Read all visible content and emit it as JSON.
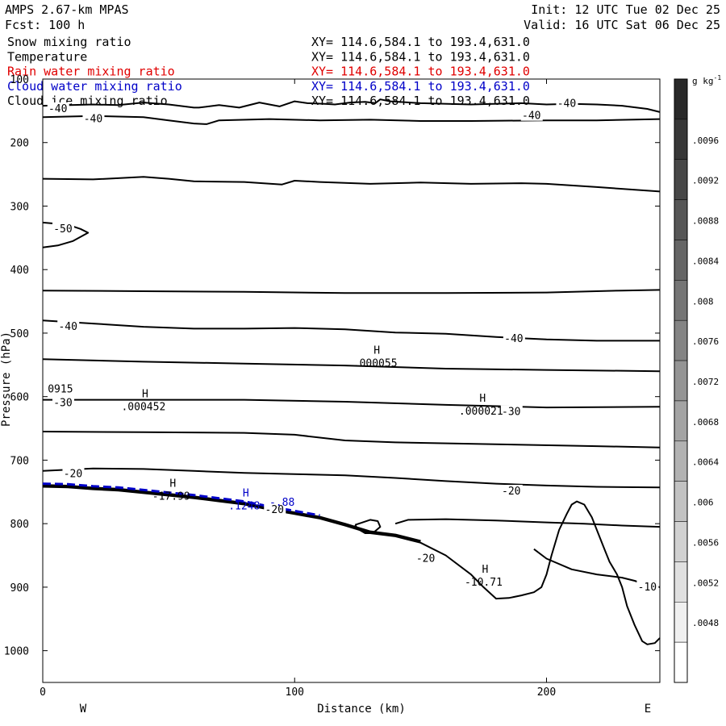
{
  "header": {
    "title": "AMPS 2.67-km MPAS",
    "fcst": "Fcst:  100 h",
    "init": "Init: 12 UTC Tue 02 Dec 25",
    "valid": "Valid: 16 UTC Sat 06 Dec 25"
  },
  "fields": [
    {
      "name": "Snow mixing ratio",
      "xy": "XY= 114.6,584.1 to 193.4,631.0",
      "color": "#000000"
    },
    {
      "name": "Temperature",
      "xy": "XY= 114.6,584.1 to 193.4,631.0",
      "color": "#000000"
    },
    {
      "name": "Rain water mixing ratio",
      "xy": "XY= 114.6,584.1 to 193.4,631.0",
      "color": "#e00000"
    },
    {
      "name": "Cloud water mixing ratio",
      "xy": "XY= 114.6,584.1 to 193.4,631.0",
      "color": "#0000c8"
    },
    {
      "name": "Cloud ice mixing ratio",
      "xy": "XY= 114.6,584.1 to 193.4,631.0",
      "color": "#000000"
    }
  ],
  "chart_data": {
    "type": "contour-cross-section",
    "xlabel": "Distance (km)",
    "ylabel": "Pressure (hPa)",
    "xlim": [
      0,
      245
    ],
    "ylim": [
      1050,
      100
    ],
    "x_ticks": [
      0,
      100,
      200
    ],
    "x_tick_labels": [
      "0",
      "100",
      "200"
    ],
    "y_ticks": [
      100,
      200,
      300,
      400,
      500,
      600,
      700,
      800,
      900,
      1000
    ],
    "y_tick_labels": [
      "100",
      "200",
      "300",
      "400",
      "500",
      "600",
      "700",
      "800",
      "900",
      "1000"
    ],
    "west_label": "W",
    "east_label": "E",
    "colorbar": {
      "unit_label": "g kg",
      "unit_exp": "-1",
      "tick_labels": [
        ".0096",
        ".0092",
        ".0088",
        ".0084",
        ".008",
        ".0076",
        ".0072",
        ".0068",
        ".0064",
        ".006",
        ".0056",
        ".0052",
        ".0048"
      ]
    },
    "contour_labels": [
      {
        "text": "-40",
        "x": 6,
        "p": 147
      },
      {
        "text": "-40",
        "x": 20,
        "p": 163
      },
      {
        "text": "-40",
        "x": 208,
        "p": 139
      },
      {
        "text": "-40",
        "x": 194,
        "p": 158
      },
      {
        "text": "-50",
        "x": 8,
        "p": 336
      },
      {
        "text": "-40",
        "x": 10,
        "p": 490
      },
      {
        "text": "-40",
        "x": 187,
        "p": 509
      },
      {
        "text": "-30",
        "x": 8,
        "p": 610
      },
      {
        "text": "-30",
        "x": 186,
        "p": 624
      },
      {
        "text": "-20",
        "x": 12,
        "p": 722
      },
      {
        "text": "-20",
        "x": 186,
        "p": 749
      },
      {
        "text": "-20",
        "x": 152,
        "p": 855
      },
      {
        "text": "-10",
        "x": 240,
        "p": 900
      },
      {
        "text": "-20",
        "x": 92,
        "p": 778
      }
    ],
    "extrema": [
      {
        "mark": "H",
        "value": ".000055",
        "x": 132,
        "p": 550,
        "color": "#000000"
      },
      {
        "mark": "H",
        "value": ".000452",
        "x": 40,
        "p": 619,
        "color": "#000000"
      },
      {
        "mark": "H",
        "value": ".000021",
        "x": 174,
        "p": 626,
        "color": "#000000"
      },
      {
        "mark": "H",
        "value": "-17.99",
        "x": 51,
        "p": 760,
        "color": "#000000"
      },
      {
        "mark": "H",
        "value": ".1248",
        "x": 80,
        "p": 775,
        "color": "#0000c8"
      },
      {
        "mark": "H",
        "value": "-10.71",
        "x": 175,
        "p": 895,
        "color": "#000000"
      }
    ],
    "edge_label": {
      "text": "0915",
      "x": 2,
      "p": 596
    },
    "isotherms": [
      {
        "name": "upper-a",
        "x": [
          0,
          20,
          30,
          40,
          50,
          60,
          62,
          70,
          78,
          86,
          94,
          100,
          105,
          112,
          116,
          122,
          128,
          132,
          134,
          138,
          150,
          170,
          190,
          200,
          210,
          220,
          230,
          240,
          245
        ],
        "p": [
          142,
          140,
          141,
          137,
          140,
          145,
          145,
          141,
          145,
          137,
          143,
          135,
          138,
          139,
          140,
          137,
          136,
          138,
          132,
          135,
          138,
          140,
          138,
          140,
          139,
          140,
          142,
          147,
          152
        ]
      },
      {
        "name": "upper-b",
        "x": [
          0,
          20,
          40,
          50,
          60,
          65,
          70,
          90,
          110,
          130,
          150,
          170,
          200,
          220,
          245
        ],
        "p": [
          160,
          158,
          160,
          165,
          170,
          171,
          165,
          163,
          165,
          164,
          166,
          166,
          165,
          165,
          163
        ]
      },
      {
        "name": "t260",
        "x": [
          0,
          20,
          40,
          50,
          60,
          80,
          95,
          100,
          110,
          130,
          150,
          170,
          190,
          200,
          220,
          245
        ],
        "p": [
          257,
          258,
          254,
          257,
          261,
          262,
          266,
          260,
          262,
          265,
          263,
          265,
          264,
          265,
          270,
          277
        ]
      },
      {
        "name": "t-50",
        "x": [
          0,
          6,
          12,
          15,
          18,
          12,
          6,
          0
        ],
        "p": [
          326,
          328,
          332,
          336,
          342,
          355,
          362,
          365
        ]
      },
      {
        "name": "t430",
        "x": [
          0,
          40,
          80,
          120,
          160,
          200,
          230,
          245
        ],
        "p": [
          433,
          434,
          435,
          437,
          437,
          436,
          433,
          432
        ]
      },
      {
        "name": "t-40",
        "x": [
          0,
          20,
          40,
          60,
          80,
          100,
          120,
          140,
          160,
          180,
          200,
          220,
          245
        ],
        "p": [
          480,
          485,
          490,
          493,
          493,
          492,
          494,
          499,
          501,
          506,
          510,
          512,
          512
        ]
      },
      {
        "name": "t545",
        "x": [
          0,
          40,
          80,
          120,
          160,
          200,
          245
        ],
        "p": [
          541,
          545,
          548,
          551,
          556,
          558,
          560
        ]
      },
      {
        "name": "t-30",
        "x": [
          0,
          40,
          80,
          120,
          160,
          200,
          245
        ],
        "p": [
          605,
          605,
          605,
          608,
          613,
          617,
          616
        ]
      },
      {
        "name": "t655",
        "x": [
          0,
          40,
          80,
          100,
          120,
          140,
          180,
          220,
          245
        ],
        "p": [
          655,
          656,
          657,
          660,
          669,
          672,
          675,
          678,
          680
        ]
      },
      {
        "name": "t-20",
        "x": [
          0,
          20,
          40,
          60,
          80,
          100,
          120,
          140,
          160,
          180,
          200,
          220,
          245
        ],
        "p": [
          717,
          713,
          714,
          717,
          720,
          722,
          724,
          728,
          733,
          737,
          740,
          742,
          743
        ]
      },
      {
        "name": "t-20-low",
        "x": [
          140,
          145,
          160,
          180,
          200,
          215,
          230,
          245
        ],
        "p": [
          800,
          794,
          793,
          795,
          798,
          800,
          803,
          805
        ]
      },
      {
        "name": "t-10",
        "x": [
          195,
          200,
          210,
          220,
          230,
          235,
          240,
          245
        ],
        "p": [
          840,
          855,
          872,
          880,
          885,
          890,
          897,
          900
        ]
      }
    ],
    "terrain": {
      "x": [
        0,
        10,
        20,
        30,
        40,
        50,
        60,
        70,
        80,
        90,
        100,
        110,
        120,
        130,
        140,
        150,
        160,
        170,
        175,
        180,
        185,
        190,
        195,
        198,
        200,
        202,
        205,
        208,
        210,
        212,
        215,
        218,
        220,
        223,
        225,
        228,
        230,
        232,
        235,
        238,
        240,
        243,
        245
      ],
      "p": [
        742,
        743,
        746,
        748,
        752,
        756,
        760,
        765,
        770,
        778,
        785,
        792,
        803,
        815,
        820,
        830,
        850,
        880,
        900,
        918,
        917,
        913,
        908,
        900,
        880,
        850,
        810,
        785,
        770,
        765,
        770,
        790,
        810,
        840,
        860,
        880,
        900,
        930,
        960,
        985,
        990,
        988,
        980
      ]
    },
    "terrain_label_blue": [
      {
        "x": 95,
        "p": 772,
        "text": "-.88"
      }
    ],
    "loop": {
      "x": [
        124,
        127,
        130,
        133,
        134,
        131,
        128,
        125,
        124
      ],
      "p": [
        802,
        798,
        794,
        796,
        805,
        815,
        815,
        808,
        802
      ]
    }
  }
}
